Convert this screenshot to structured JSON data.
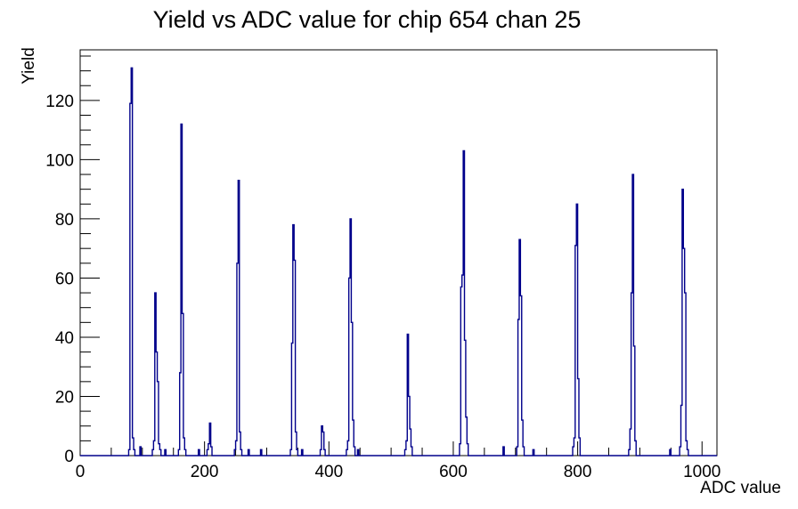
{
  "page": {
    "background": "#ffffff"
  },
  "chart_data": {
    "type": "bar",
    "title": "Yield vs ADC value for chip 654 chan 25",
    "xlabel": "ADC value",
    "ylabel": "Yield",
    "xlim": [
      0,
      1024
    ],
    "ylim": [
      0,
      137.1
    ],
    "x_major_ticks": [
      0,
      200,
      400,
      600,
      800,
      1000
    ],
    "x_minor_step": 50,
    "y_major_ticks": [
      0,
      20,
      40,
      60,
      80,
      100,
      120
    ],
    "y_minor_step": 5,
    "grid": false,
    "legend": null,
    "bin_width_adc": 2,
    "line_color": "#00008b",
    "axis_color": "#000000",
    "peak_summary": [
      {
        "adc": 82,
        "yield": 131
      },
      {
        "adc": 120,
        "yield": 55
      },
      {
        "adc": 162,
        "yield": 112
      },
      {
        "adc": 208,
        "yield": 11
      },
      {
        "adc": 254,
        "yield": 93
      },
      {
        "adc": 342,
        "yield": 78
      },
      {
        "adc": 388,
        "yield": 10
      },
      {
        "adc": 434,
        "yield": 80
      },
      {
        "adc": 526,
        "yield": 41
      },
      {
        "adc": 616,
        "yield": 103
      },
      {
        "adc": 706,
        "yield": 73
      },
      {
        "adc": 798,
        "yield": 85
      },
      {
        "adc": 888,
        "yield": 95
      },
      {
        "adc": 968,
        "yield": 90
      }
    ],
    "bins_adc_height": [
      [
        78,
        2
      ],
      [
        80,
        119
      ],
      [
        82,
        131
      ],
      [
        84,
        6
      ],
      [
        86,
        2
      ],
      [
        96,
        3
      ],
      [
        116,
        2
      ],
      [
        118,
        5
      ],
      [
        120,
        55
      ],
      [
        122,
        35
      ],
      [
        124,
        25
      ],
      [
        126,
        4
      ],
      [
        128,
        2
      ],
      [
        136,
        2
      ],
      [
        158,
        2
      ],
      [
        160,
        28
      ],
      [
        162,
        112
      ],
      [
        164,
        48
      ],
      [
        166,
        6
      ],
      [
        168,
        2
      ],
      [
        190,
        2
      ],
      [
        204,
        2
      ],
      [
        206,
        4
      ],
      [
        208,
        11
      ],
      [
        210,
        3
      ],
      [
        248,
        2
      ],
      [
        250,
        5
      ],
      [
        252,
        65
      ],
      [
        254,
        93
      ],
      [
        256,
        8
      ],
      [
        258,
        2
      ],
      [
        270,
        2
      ],
      [
        290,
        2
      ],
      [
        338,
        2
      ],
      [
        340,
        38
      ],
      [
        342,
        78
      ],
      [
        344,
        66
      ],
      [
        346,
        8
      ],
      [
        348,
        2
      ],
      [
        356,
        2
      ],
      [
        386,
        2
      ],
      [
        388,
        10
      ],
      [
        390,
        8
      ],
      [
        392,
        2
      ],
      [
        428,
        2
      ],
      [
        430,
        5
      ],
      [
        432,
        60
      ],
      [
        434,
        80
      ],
      [
        436,
        45
      ],
      [
        438,
        12
      ],
      [
        440,
        3
      ],
      [
        446,
        2
      ],
      [
        522,
        2
      ],
      [
        524,
        5
      ],
      [
        526,
        41
      ],
      [
        528,
        20
      ],
      [
        530,
        9
      ],
      [
        532,
        3
      ],
      [
        610,
        4
      ],
      [
        612,
        57
      ],
      [
        614,
        61
      ],
      [
        616,
        103
      ],
      [
        618,
        39
      ],
      [
        620,
        13
      ],
      [
        622,
        4
      ],
      [
        680,
        3
      ],
      [
        702,
        3
      ],
      [
        704,
        46
      ],
      [
        706,
        73
      ],
      [
        708,
        54
      ],
      [
        710,
        12
      ],
      [
        712,
        3
      ],
      [
        728,
        2
      ],
      [
        792,
        3
      ],
      [
        794,
        6
      ],
      [
        796,
        71
      ],
      [
        798,
        85
      ],
      [
        800,
        26
      ],
      [
        802,
        6
      ],
      [
        882,
        2
      ],
      [
        884,
        9
      ],
      [
        886,
        55
      ],
      [
        888,
        95
      ],
      [
        890,
        37
      ],
      [
        892,
        5
      ],
      [
        948,
        2
      ],
      [
        964,
        3
      ],
      [
        966,
        17
      ],
      [
        968,
        90
      ],
      [
        970,
        70
      ],
      [
        972,
        55
      ],
      [
        974,
        5
      ],
      [
        976,
        2
      ]
    ]
  }
}
